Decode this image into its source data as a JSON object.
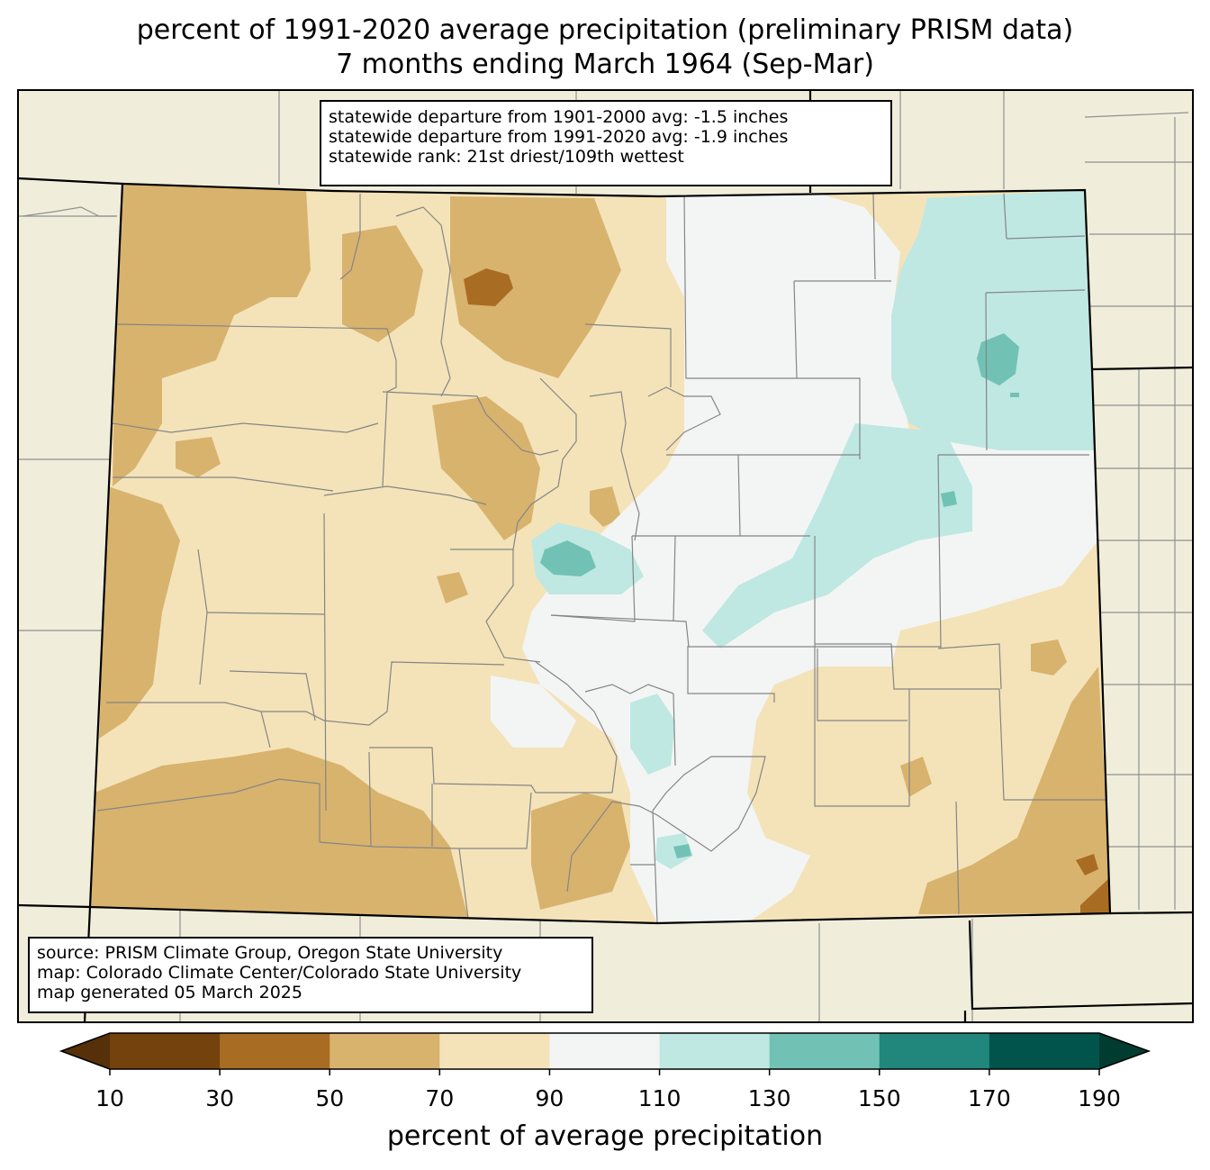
{
  "title": {
    "line1": "percent of 1991-2020 average precipitation (preliminary PRISM data)",
    "line2": "7 months ending March 1964 (Sep-Mar)"
  },
  "stats": {
    "line1": "statewide departure from 1901-2000 avg: -1.5 inches",
    "line2": "statewide departure from 1991-2020 avg: -1.9 inches",
    "line3": "statewide rank: 21st driest/109th wettest"
  },
  "source": {
    "line1": "source: PRISM Climate Group, Oregon State University",
    "line2": "map: Colorado Climate Center/Colorado State University",
    "line3": "map generated 05 March 2025"
  },
  "colorbar": {
    "label": "percent of average precipitation",
    "ticks": [
      "10",
      "30",
      "50",
      "70",
      "90",
      "110",
      "130",
      "150",
      "170",
      "190"
    ],
    "colors": [
      "#73420d",
      "#a96c23",
      "#d8b36e",
      "#f4e3b9",
      "#f3f5f4",
      "#bfe8e2",
      "#71c2b4",
      "#21877c",
      "#01544c"
    ],
    "under_color": "#553008",
    "over_color": "#003c30"
  },
  "background_color": "#f0eedb"
}
